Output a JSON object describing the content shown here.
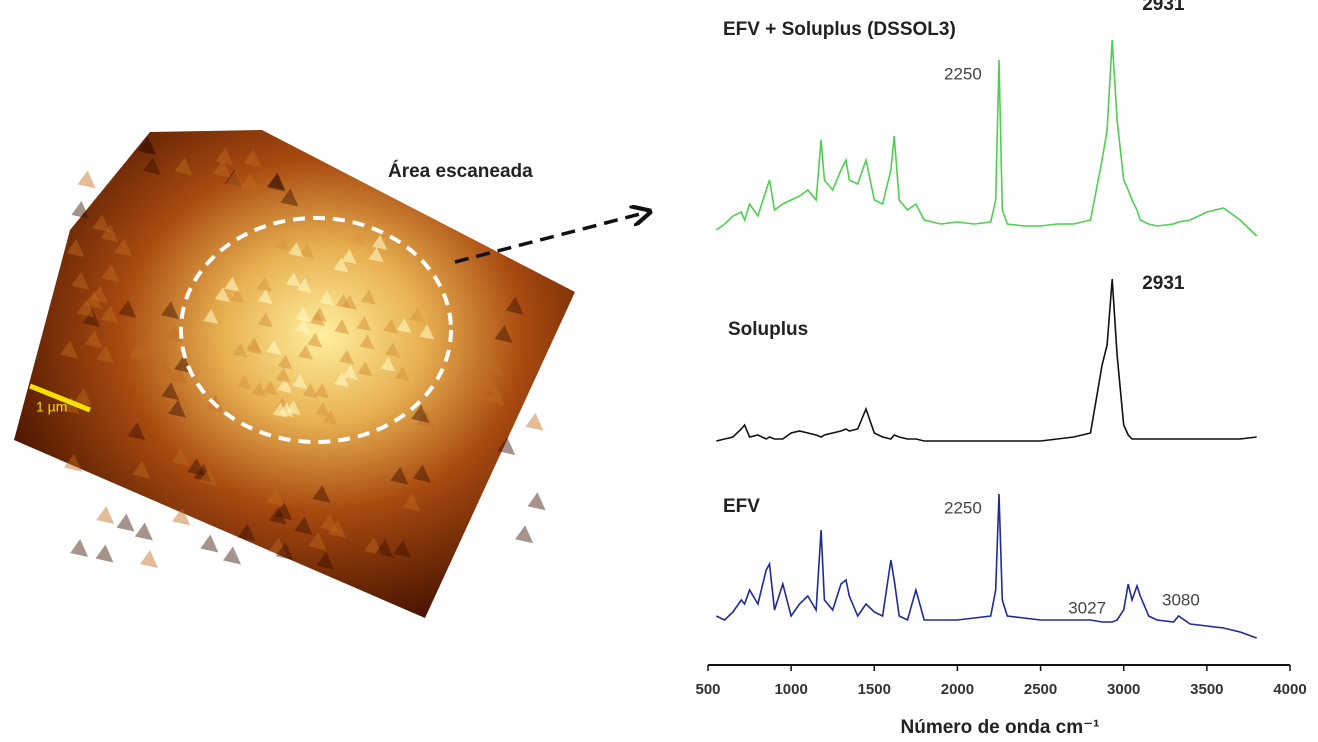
{
  "image": {
    "scan_label": "Área escaneada",
    "scale_bar": "1 µm"
  },
  "chart_data": {
    "type": "line",
    "xlabel": "Número de onda cm⁻¹",
    "xlim": [
      500,
      4000
    ],
    "xticks": [
      500,
      1000,
      1500,
      2000,
      2500,
      3000,
      3500,
      4000
    ],
    "ylim": [
      0,
      100
    ],
    "x": [
      550,
      600,
      650,
      700,
      720,
      750,
      800,
      850,
      870,
      900,
      950,
      1000,
      1050,
      1100,
      1150,
      1180,
      1200,
      1250,
      1300,
      1330,
      1350,
      1400,
      1450,
      1500,
      1550,
      1600,
      1620,
      1650,
      1700,
      1750,
      1800,
      1900,
      2000,
      2100,
      2200,
      2230,
      2250,
      2270,
      2300,
      2400,
      2500,
      2600,
      2700,
      2800,
      2870,
      2900,
      2931,
      2960,
      3000,
      3027,
      3050,
      3080,
      3100,
      3150,
      3200,
      3300,
      3330,
      3400,
      3500,
      3600,
      3700,
      3800
    ],
    "series": [
      {
        "name": "EFV + Soluplus (DSSOL3)",
        "color": "#4fcf4f",
        "peaks": [
          2250,
          2931
        ],
        "values": [
          5,
          8,
          12,
          14,
          10,
          18,
          12,
          25,
          30,
          15,
          18,
          20,
          22,
          25,
          20,
          50,
          30,
          25,
          35,
          40,
          30,
          28,
          40,
          20,
          18,
          35,
          52,
          20,
          15,
          18,
          10,
          8,
          9,
          8,
          9,
          20,
          90,
          15,
          8,
          7,
          7,
          8,
          8,
          10,
          40,
          55,
          100,
          60,
          30,
          25,
          20,
          15,
          10,
          8,
          7,
          8,
          9,
          10,
          14,
          16,
          10,
          2
        ]
      },
      {
        "name": "Soluplus",
        "color": "#111111",
        "peaks": [
          2931
        ],
        "values": [
          2,
          3,
          4,
          8,
          10,
          4,
          5,
          3,
          4,
          3,
          3,
          6,
          7,
          6,
          5,
          4,
          5,
          6,
          7,
          8,
          7,
          8,
          18,
          6,
          4,
          3,
          5,
          4,
          3,
          3,
          2,
          2,
          2,
          2,
          2,
          2,
          2,
          2,
          2,
          2,
          2,
          3,
          4,
          6,
          40,
          50,
          83,
          45,
          10,
          5,
          3,
          3,
          3,
          3,
          3,
          3,
          3,
          3,
          3,
          3,
          3,
          4
        ]
      },
      {
        "name": "EFV",
        "color": "#1f2a9a",
        "peaks": [
          2250,
          3027,
          3080
        ],
        "values": [
          12,
          10,
          14,
          20,
          18,
          25,
          18,
          35,
          38,
          15,
          28,
          12,
          18,
          22,
          15,
          55,
          20,
          15,
          28,
          30,
          22,
          12,
          18,
          14,
          12,
          40,
          30,
          12,
          10,
          25,
          10,
          10,
          10,
          11,
          12,
          25,
          73,
          20,
          12,
          11,
          10,
          10,
          10,
          10,
          9,
          9,
          9,
          10,
          15,
          28,
          20,
          27,
          22,
          12,
          10,
          9,
          12,
          8,
          7,
          6,
          4,
          1
        ]
      }
    ]
  }
}
